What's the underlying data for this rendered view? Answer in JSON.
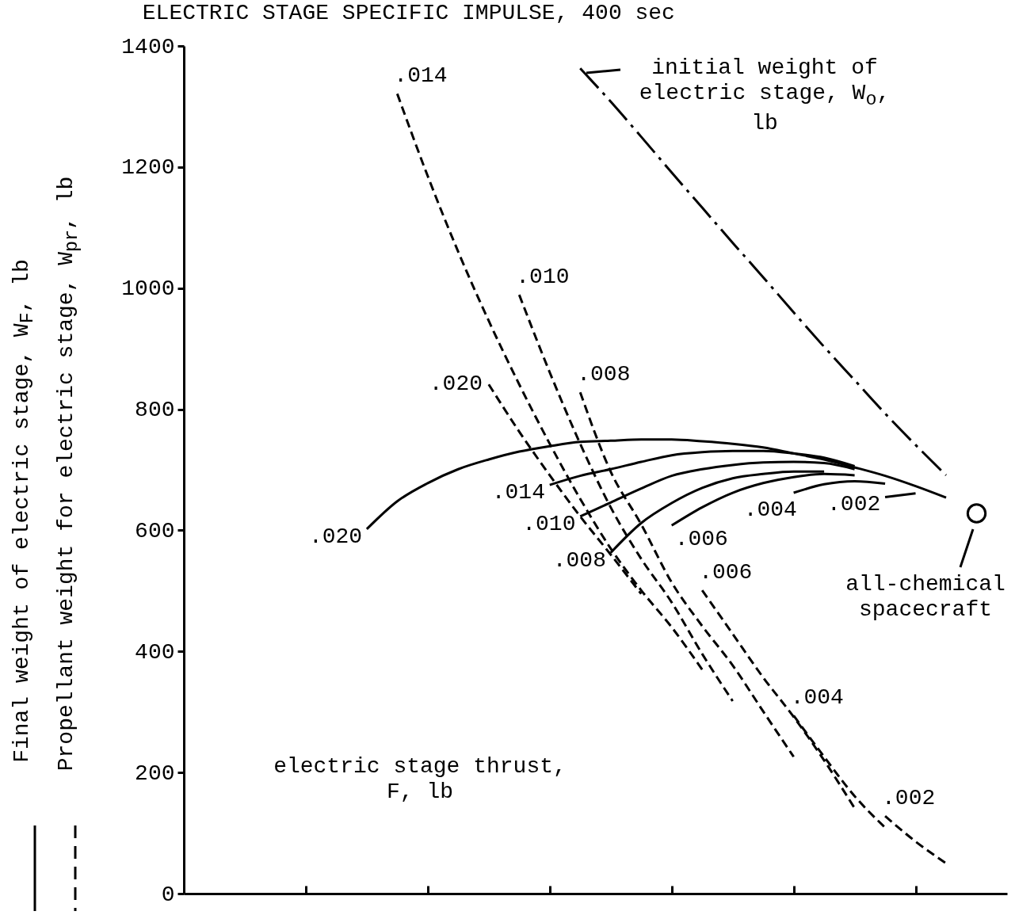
{
  "chart_data": {
    "type": "line",
    "title": "ELECTRIC STAGE SPECIFIC IMPULSE, 400 sec",
    "annotations": [
      "Final weight of electric stage, W$_{F}$, lb",
      "Propellant weight for electric stage, W$_{pr}$, lb",
      "electric stage thrust, F, lb"
    ],
    "categories": [
      null,
      null,
      null,
      null,
      null,
      null,
      null,
      null,
      null,
      null,
      null,
      null,
      null,
      null,
      null,
      null,
      null,
      null,
      null,
      null,
      null,
      null,
      null,
      null,
      null,
      null,
      null,
      null
    ],
    "ylim": [
      0,
      1400
    ],
    "yticks": [
      0,
      200,
      400,
      600,
      800,
      1000,
      1200,
      1400
    ],
    "tick_labels": "y",
    "series": [
      {
        "name": ".020",
        "color": "#000000",
        "line_style": "solid",
        "values": [
          null,
          null,
          null,
          null,
          null,
          null,
          602,
          648,
          678,
          701,
          717,
          730,
          739,
          746,
          748,
          750,
          750,
          747,
          743,
          737,
          727,
          717,
          704,
          690,
          673,
          654,
          null,
          null
        ]
      },
      {
        "name": ".014",
        "color": "#000000",
        "line_style": "solid",
        "values": [
          null,
          null,
          null,
          null,
          null,
          null,
          null,
          null,
          null,
          null,
          null,
          null,
          675,
          690,
          701,
          713,
          724,
          729,
          731,
          731,
          727,
          720,
          706,
          null,
          null,
          null,
          null,
          null
        ]
      },
      {
        "name": ".010",
        "color": "#000000",
        "line_style": "solid",
        "values": [
          null,
          null,
          null,
          null,
          null,
          null,
          null,
          null,
          null,
          null,
          null,
          null,
          null,
          623,
          646,
          669,
          690,
          701,
          708,
          712,
          713,
          711,
          701,
          null,
          null,
          null,
          null,
          null
        ]
      },
      {
        "name": ".008",
        "color": "#000000",
        "line_style": "solid",
        "values": [
          null,
          null,
          null,
          null,
          null,
          null,
          null,
          null,
          null,
          null,
          null,
          null,
          null,
          null,
          563,
          612,
          645,
          670,
          686,
          693,
          697,
          697,
          null,
          null,
          null,
          null,
          null,
          null
        ]
      },
      {
        "name": ".006",
        "color": "#000000",
        "line_style": "solid",
        "values": [
          null,
          null,
          null,
          null,
          null,
          null,
          null,
          null,
          null,
          null,
          null,
          null,
          null,
          null,
          null,
          null,
          608,
          638,
          662,
          678,
          688,
          693,
          691,
          null,
          null,
          null,
          null,
          null
        ]
      },
      {
        "name": ".004",
        "color": "#000000",
        "line_style": "solid",
        "values": [
          null,
          null,
          null,
          null,
          null,
          null,
          null,
          null,
          null,
          null,
          null,
          null,
          null,
          null,
          null,
          null,
          null,
          null,
          null,
          null,
          662,
          676,
          681,
          677,
          null,
          null,
          null,
          null
        ]
      },
      {
        "name": ".002",
        "color": "#000000",
        "line_style": "solid",
        "values": [
          null,
          null,
          null,
          null,
          null,
          null,
          null,
          null,
          null,
          null,
          null,
          null,
          null,
          null,
          null,
          null,
          null,
          null,
          null,
          null,
          null,
          null,
          null,
          655,
          661,
          null,
          null,
          null
        ]
      },
      {
        "name": ".014",
        "color": "#000000",
        "line_style": "dashed",
        "values": [
          null,
          null,
          null,
          null,
          null,
          null,
          null,
          1321,
          1185,
          1060,
          946,
          841,
          743,
          652,
          570,
          501,
          440,
          370,
          null,
          null,
          null,
          null,
          null,
          null,
          null,
          null,
          null,
          null
        ]
      },
      {
        "name": ".010",
        "color": "#000000",
        "line_style": "dashed",
        "values": [
          null,
          null,
          null,
          null,
          null,
          null,
          null,
          null,
          null,
          null,
          null,
          989,
          861,
          743,
          638,
          553,
          481,
          396,
          318,
          null,
          null,
          null,
          null,
          null,
          null,
          null,
          null,
          null
        ]
      },
      {
        "name": ".020",
        "color": "#000000",
        "line_style": "dashed",
        "values": [
          null,
          null,
          null,
          null,
          null,
          null,
          null,
          null,
          null,
          null,
          841,
          763,
          691,
          623,
          560,
          495,
          null,
          null,
          null,
          null,
          null,
          null,
          null,
          null,
          null,
          null,
          null,
          null
        ]
      },
      {
        "name": ".008",
        "color": "#000000",
        "line_style": "dashed",
        "values": [
          null,
          null,
          null,
          null,
          null,
          null,
          null,
          null,
          null,
          null,
          null,
          null,
          null,
          828,
          697,
          610,
          514,
          442,
          377,
          301,
          226,
          null,
          null,
          null,
          null,
          null,
          null,
          null
        ]
      },
      {
        "name": ".006",
        "color": "#000000",
        "line_style": "dashed",
        "values": [
          null,
          null,
          null,
          null,
          null,
          null,
          null,
          null,
          null,
          null,
          null,
          null,
          null,
          null,
          null,
          null,
          null,
          501,
          429,
          357,
          292,
          220,
          141,
          null,
          null,
          null,
          null,
          null
        ]
      },
      {
        "name": ".004",
        "color": "#000000",
        "line_style": "dashed",
        "values": [
          null,
          null,
          null,
          null,
          null,
          null,
          null,
          null,
          null,
          null,
          null,
          null,
          null,
          null,
          null,
          null,
          null,
          null,
          null,
          null,
          294,
          226,
          161,
          109,
          null,
          null,
          null,
          null
        ]
      },
      {
        "name": ".002",
        "color": "#000000",
        "line_style": "dashed",
        "values": [
          null,
          null,
          null,
          null,
          null,
          null,
          null,
          null,
          null,
          null,
          null,
          null,
          null,
          null,
          null,
          null,
          null,
          null,
          null,
          null,
          null,
          null,
          null,
          128,
          86,
          50,
          null,
          null
        ]
      },
      {
        "name": "initial weight of electric stage, W$_{o}$, lb",
        "color": "#000000",
        "line_style": "dashdot",
        "values": [
          null,
          null,
          null,
          null,
          null,
          null,
          null,
          null,
          null,
          null,
          null,
          null,
          null,
          1363,
          1308,
          1250,
          1191,
          1133,
          1075,
          1018,
          960,
          903,
          848,
          793,
          741,
          691,
          null,
          null
        ]
      },
      {
        "name": "all-chemical spacecraft",
        "type": "scatter",
        "marker": "circle",
        "color": "#000000",
        "values": [
          null,
          null,
          null,
          null,
          null,
          null,
          null,
          null,
          null,
          null,
          null,
          null,
          null,
          null,
          null,
          null,
          null,
          null,
          null,
          null,
          null,
          null,
          null,
          null,
          null,
          null,
          628,
          null
        ]
      }
    ]
  }
}
